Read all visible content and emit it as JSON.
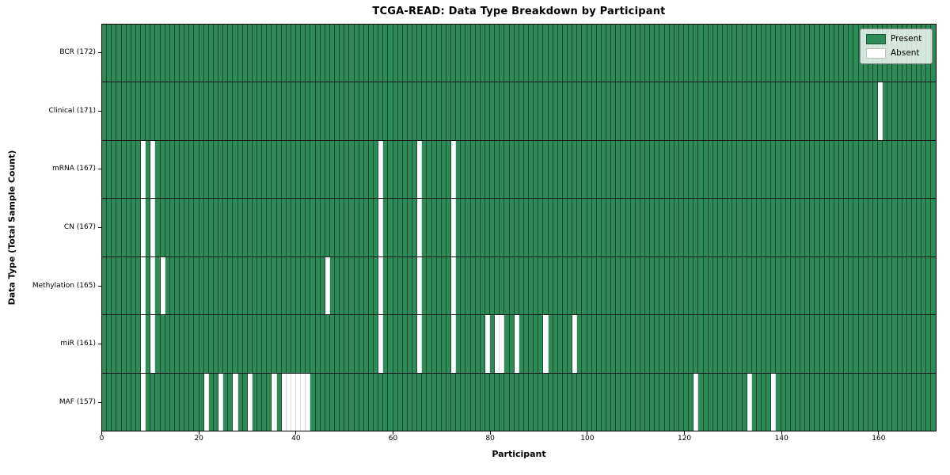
{
  "colors": {
    "present": "#2E8B57",
    "absent": "#FFFFFF",
    "cell_border": "rgba(0,0,0,0.45)",
    "absent_cell_border": "rgba(0,0,0,0.14)",
    "row_divider": "#141414",
    "plot_border": "#000000"
  },
  "chart_data": {
    "type": "heatmap",
    "title": "TCGA-READ: Data Type Breakdown by Participant",
    "xlabel": "Participant",
    "ylabel": "Data Type (Total Sample Count)",
    "legend": [
      "Present",
      "Absent"
    ],
    "legend_position": "upper right",
    "grid": "cell-borders",
    "n_participants": 172,
    "x_range": [
      0,
      172
    ],
    "x_ticks": [
      0,
      20,
      40,
      60,
      80,
      100,
      120,
      140,
      160
    ],
    "cell_values": {
      "present": 1,
      "absent": 0
    },
    "rows": [
      {
        "label": "BCR (172)",
        "data_type": "BCR",
        "present_count": 172,
        "absent_participants": []
      },
      {
        "label": "Clinical (171)",
        "data_type": "Clinical",
        "present_count": 171,
        "absent_participants": [
          160
        ]
      },
      {
        "label": "mRNA (167)",
        "data_type": "mRNA",
        "present_count": 167,
        "absent_participants": [
          8,
          10,
          57,
          65,
          72
        ]
      },
      {
        "label": "CN (167)",
        "data_type": "CN",
        "present_count": 167,
        "absent_participants": [
          8,
          10,
          57,
          65,
          72
        ]
      },
      {
        "label": "Methylation (165)",
        "data_type": "Methylation",
        "present_count": 165,
        "absent_participants": [
          8,
          10,
          12,
          46,
          57,
          65,
          72
        ]
      },
      {
        "label": "miR (161)",
        "data_type": "miR",
        "present_count": 161,
        "absent_participants": [
          8,
          10,
          57,
          65,
          72,
          79,
          81,
          82,
          85,
          91,
          97
        ]
      },
      {
        "label": "MAF (157)",
        "data_type": "MAF",
        "present_count": 157,
        "absent_participants": [
          8,
          21,
          24,
          27,
          30,
          35,
          37,
          38,
          39,
          40,
          41,
          42,
          122,
          133,
          138
        ]
      }
    ]
  }
}
